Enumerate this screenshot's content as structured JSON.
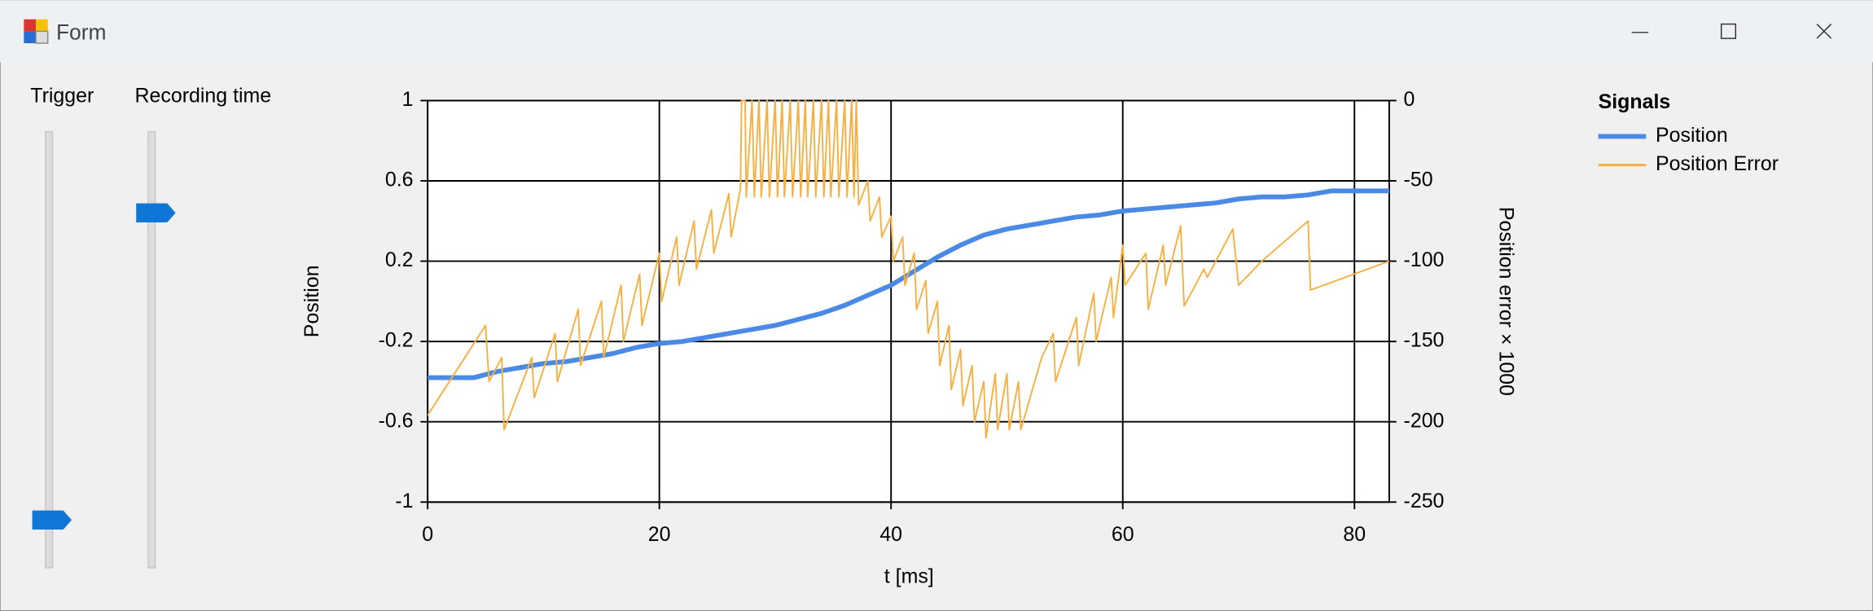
{
  "window": {
    "title": "Form"
  },
  "sliders": [
    {
      "label": "Trigger"
    },
    {
      "label": "Recording time"
    }
  ],
  "chart_data": {
    "type": "line",
    "xlabel": "t [ms]",
    "ylabel": "Position",
    "y2label": "Position error × 1000",
    "xlim": [
      0,
      83
    ],
    "xticks": [
      0,
      20,
      40,
      60,
      80
    ],
    "ylim": [
      -1,
      1
    ],
    "yticks": [
      -1,
      -0.6,
      -0.2,
      0.2,
      0.6,
      1
    ],
    "y2lim": [
      -250,
      0
    ],
    "y2ticks": [
      -250,
      -200,
      -150,
      -100,
      -50,
      0
    ],
    "grid": true,
    "legend": {
      "title": "Signals",
      "position": "right"
    },
    "series": [
      {
        "name": "Position",
        "color": "#4a8ae6",
        "x": [
          0,
          2,
          4,
          6,
          8,
          10,
          12,
          14,
          16,
          18,
          20,
          22,
          24,
          26,
          28,
          30,
          32,
          34,
          36,
          38,
          40,
          42,
          44,
          46,
          48,
          50,
          52,
          54,
          56,
          58,
          60,
          62,
          64,
          66,
          68,
          70,
          72,
          74,
          76,
          78,
          80,
          82,
          83
        ],
        "values": [
          -0.38,
          -0.38,
          -0.38,
          -0.35,
          -0.33,
          -0.31,
          -0.3,
          -0.28,
          -0.26,
          -0.23,
          -0.21,
          -0.2,
          -0.18,
          -0.16,
          -0.14,
          -0.12,
          -0.09,
          -0.06,
          -0.02,
          0.03,
          0.08,
          0.15,
          0.22,
          0.28,
          0.33,
          0.36,
          0.38,
          0.4,
          0.42,
          0.43,
          0.45,
          0.46,
          0.47,
          0.48,
          0.49,
          0.51,
          0.52,
          0.52,
          0.53,
          0.55,
          0.55,
          0.55,
          0.55
        ]
      },
      {
        "name": "Position Error",
        "color": "#f5b041",
        "axis": "y2",
        "x": [
          0,
          5,
          5.3,
          6.4,
          6.6,
          9,
          9.2,
          11,
          11.2,
          13,
          13.2,
          15,
          15.2,
          16.7,
          16.9,
          18.3,
          18.5,
          20,
          20.2,
          21.5,
          21.7,
          23,
          23.2,
          24.5,
          24.7,
          26,
          26.2,
          27,
          27.1,
          27.4,
          27.5,
          28,
          28.2,
          28.6,
          28.8,
          29.3,
          29.5,
          30,
          30.2,
          30.6,
          30.8,
          31.3,
          31.5,
          32,
          32.2,
          32.6,
          32.8,
          33.3,
          33.5,
          34,
          34.2,
          34.6,
          34.8,
          35.3,
          35.5,
          36,
          36.2,
          36.6,
          36.8,
          37,
          37.2,
          38,
          38.2,
          39,
          39.2,
          40,
          40.2,
          41,
          41.2,
          42,
          42.2,
          43,
          43.2,
          44,
          44.2,
          45,
          45.2,
          46,
          46.2,
          47,
          47.2,
          48,
          48.2,
          49,
          49.2,
          50,
          50.2,
          51,
          51.2,
          53,
          54,
          54.2,
          56,
          56.2,
          57.5,
          57.7,
          59,
          59.2,
          60,
          60.2,
          62,
          62.2,
          63.5,
          63.7,
          65,
          65.3,
          67,
          67.3,
          69.5,
          70,
          72,
          76,
          76.2,
          83
        ],
        "values": [
          -196,
          -140,
          -175,
          -160,
          -205,
          -160,
          -185,
          -145,
          -175,
          -130,
          -165,
          -125,
          -160,
          -115,
          -150,
          -108,
          -140,
          -95,
          -125,
          -85,
          -115,
          -75,
          -105,
          -68,
          -95,
          -58,
          -85,
          -55,
          0,
          0,
          -60,
          0,
          -60,
          0,
          -60,
          0,
          -60,
          0,
          -60,
          0,
          -60,
          0,
          -60,
          0,
          -60,
          0,
          -60,
          0,
          -60,
          0,
          -60,
          0,
          -60,
          0,
          -60,
          0,
          -60,
          0,
          -60,
          0,
          -65,
          -50,
          -75,
          -60,
          -85,
          -72,
          -100,
          -85,
          -115,
          -95,
          -130,
          -112,
          -145,
          -125,
          -165,
          -140,
          -180,
          -155,
          -190,
          -165,
          -200,
          -175,
          -210,
          -170,
          -205,
          -170,
          -205,
          -175,
          -205,
          -160,
          -145,
          -175,
          -135,
          -165,
          -120,
          -150,
          -110,
          -135,
          -90,
          -115,
          -95,
          -130,
          -90,
          -115,
          -78,
          -128,
          -105,
          -110,
          -80,
          -115,
          -100,
          -75,
          -118,
          -100
        ]
      }
    ]
  }
}
